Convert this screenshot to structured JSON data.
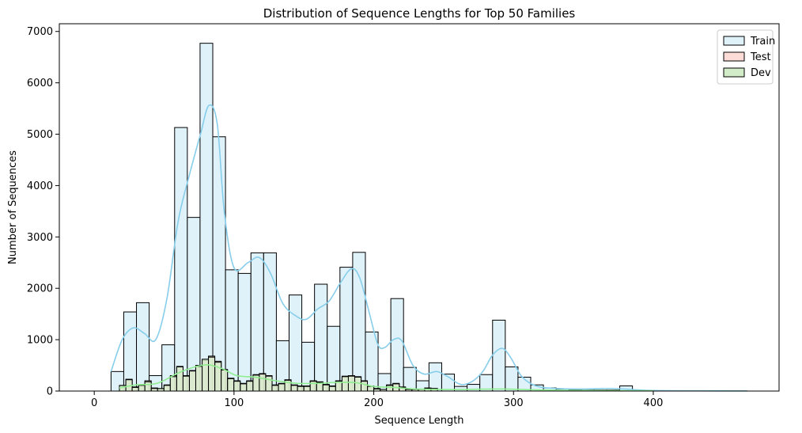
{
  "chart_data": {
    "type": "bar",
    "title": "Distribution of Sequence Lengths for Top 50 Families",
    "xlabel": "Sequence Length",
    "ylabel": "Number of Sequences",
    "xlim": [
      -25,
      490
    ],
    "ylim": [
      0,
      7150
    ],
    "xticks": [
      0,
      100,
      200,
      300,
      400
    ],
    "yticks": [
      0,
      1000,
      2000,
      3000,
      4000,
      5000,
      6000,
      7000
    ],
    "grid": false,
    "legend_position": "top-right",
    "series": [
      {
        "name": "Train",
        "fill": "#dff2fa",
        "kde_color": "#87ceeb",
        "bin_width": 9.1,
        "bins": [
          {
            "x": 12,
            "y": 380
          },
          {
            "x": 21.1,
            "y": 1540
          },
          {
            "x": 30.2,
            "y": 1720
          },
          {
            "x": 39.3,
            "y": 300
          },
          {
            "x": 48.4,
            "y": 900
          },
          {
            "x": 57.5,
            "y": 5130
          },
          {
            "x": 66.6,
            "y": 3380
          },
          {
            "x": 75.7,
            "y": 6770
          },
          {
            "x": 84.8,
            "y": 4950
          },
          {
            "x": 93.9,
            "y": 2360
          },
          {
            "x": 103,
            "y": 2290
          },
          {
            "x": 112.1,
            "y": 2690
          },
          {
            "x": 121.2,
            "y": 2690
          },
          {
            "x": 130.3,
            "y": 980
          },
          {
            "x": 139.4,
            "y": 1870
          },
          {
            "x": 148.5,
            "y": 950
          },
          {
            "x": 157.6,
            "y": 2080
          },
          {
            "x": 166.7,
            "y": 1260
          },
          {
            "x": 175.8,
            "y": 2410
          },
          {
            "x": 184.9,
            "y": 2700
          },
          {
            "x": 194,
            "y": 1150
          },
          {
            "x": 203.1,
            "y": 340
          },
          {
            "x": 212.2,
            "y": 1800
          },
          {
            "x": 221.3,
            "y": 460
          },
          {
            "x": 230.4,
            "y": 200
          },
          {
            "x": 239.5,
            "y": 550
          },
          {
            "x": 248.6,
            "y": 330
          },
          {
            "x": 257.7,
            "y": 90
          },
          {
            "x": 266.8,
            "y": 130
          },
          {
            "x": 275.9,
            "y": 320
          },
          {
            "x": 285,
            "y": 1380
          },
          {
            "x": 294.1,
            "y": 470
          },
          {
            "x": 303.2,
            "y": 270
          },
          {
            "x": 312.3,
            "y": 120
          },
          {
            "x": 321.4,
            "y": 60
          },
          {
            "x": 330.5,
            "y": 40
          },
          {
            "x": 339.6,
            "y": 30
          },
          {
            "x": 348.7,
            "y": 20
          },
          {
            "x": 357.8,
            "y": 20
          },
          {
            "x": 366.9,
            "y": 20
          },
          {
            "x": 376,
            "y": 100
          },
          {
            "x": 385.1,
            "y": 10
          },
          {
            "x": 394.2,
            "y": 5
          },
          {
            "x": 403.3,
            "y": 5
          },
          {
            "x": 412.4,
            "y": 5
          },
          {
            "x": 421.5,
            "y": 5
          },
          {
            "x": 430.6,
            "y": 5
          },
          {
            "x": 439.7,
            "y": 3
          },
          {
            "x": 448.8,
            "y": 3
          },
          {
            "x": 457.9,
            "y": 3
          }
        ],
        "kde": [
          {
            "x": 12,
            "y": 380
          },
          {
            "x": 20,
            "y": 1000
          },
          {
            "x": 28,
            "y": 1230
          },
          {
            "x": 36,
            "y": 1120
          },
          {
            "x": 44,
            "y": 1000
          },
          {
            "x": 52,
            "y": 1800
          },
          {
            "x": 60,
            "y": 3300
          },
          {
            "x": 68,
            "y": 4200
          },
          {
            "x": 76,
            "y": 5000
          },
          {
            "x": 82,
            "y": 5560
          },
          {
            "x": 88,
            "y": 5200
          },
          {
            "x": 93,
            "y": 3500
          },
          {
            "x": 100,
            "y": 2400
          },
          {
            "x": 110,
            "y": 2500
          },
          {
            "x": 118,
            "y": 2600
          },
          {
            "x": 126,
            "y": 2300
          },
          {
            "x": 135,
            "y": 1700
          },
          {
            "x": 145,
            "y": 1450
          },
          {
            "x": 152,
            "y": 1400
          },
          {
            "x": 160,
            "y": 1600
          },
          {
            "x": 168,
            "y": 1750
          },
          {
            "x": 176,
            "y": 2100
          },
          {
            "x": 184,
            "y": 2380
          },
          {
            "x": 190,
            "y": 2200
          },
          {
            "x": 197,
            "y": 1500
          },
          {
            "x": 203,
            "y": 900
          },
          {
            "x": 208,
            "y": 850
          },
          {
            "x": 214,
            "y": 1000
          },
          {
            "x": 220,
            "y": 980
          },
          {
            "x": 228,
            "y": 500
          },
          {
            "x": 236,
            "y": 330
          },
          {
            "x": 245,
            "y": 380
          },
          {
            "x": 253,
            "y": 280
          },
          {
            "x": 262,
            "y": 130
          },
          {
            "x": 270,
            "y": 180
          },
          {
            "x": 278,
            "y": 380
          },
          {
            "x": 285,
            "y": 700
          },
          {
            "x": 292,
            "y": 830
          },
          {
            "x": 298,
            "y": 650
          },
          {
            "x": 306,
            "y": 280
          },
          {
            "x": 316,
            "y": 100
          },
          {
            "x": 330,
            "y": 50
          },
          {
            "x": 350,
            "y": 40
          },
          {
            "x": 370,
            "y": 50
          },
          {
            "x": 385,
            "y": 30
          },
          {
            "x": 400,
            "y": 10
          },
          {
            "x": 430,
            "y": 5
          },
          {
            "x": 467,
            "y": 2
          }
        ]
      },
      {
        "name": "Test",
        "fill": "#fddcd7",
        "kde_color": "#f4a6a0",
        "bin_width": 4.55,
        "bins": [
          {
            "x": 18,
            "y": 100
          },
          {
            "x": 22.6,
            "y": 230
          },
          {
            "x": 27.1,
            "y": 80
          },
          {
            "x": 31.7,
            "y": 120
          },
          {
            "x": 36.2,
            "y": 200
          },
          {
            "x": 40.8,
            "y": 60
          },
          {
            "x": 45.3,
            "y": 40
          },
          {
            "x": 49.9,
            "y": 120
          },
          {
            "x": 54.4,
            "y": 300
          },
          {
            "x": 59,
            "y": 480
          },
          {
            "x": 63.5,
            "y": 300
          },
          {
            "x": 68.1,
            "y": 400
          },
          {
            "x": 72.6,
            "y": 500
          },
          {
            "x": 77.2,
            "y": 600
          },
          {
            "x": 81.7,
            "y": 680
          },
          {
            "x": 86.3,
            "y": 580
          },
          {
            "x": 90.8,
            "y": 420
          },
          {
            "x": 95.4,
            "y": 250
          },
          {
            "x": 99.9,
            "y": 200
          },
          {
            "x": 104.5,
            "y": 150
          },
          {
            "x": 109,
            "y": 200
          },
          {
            "x": 113.6,
            "y": 320
          },
          {
            "x": 118.1,
            "y": 340
          },
          {
            "x": 122.7,
            "y": 300
          },
          {
            "x": 127.2,
            "y": 120
          },
          {
            "x": 131.8,
            "y": 150
          },
          {
            "x": 136.3,
            "y": 220
          },
          {
            "x": 140.9,
            "y": 120
          },
          {
            "x": 145.4,
            "y": 100
          },
          {
            "x": 150,
            "y": 100
          },
          {
            "x": 154.5,
            "y": 200
          },
          {
            "x": 159.1,
            "y": 180
          },
          {
            "x": 163.6,
            "y": 130
          },
          {
            "x": 168.2,
            "y": 100
          },
          {
            "x": 172.7,
            "y": 200
          },
          {
            "x": 177.3,
            "y": 290
          },
          {
            "x": 181.8,
            "y": 300
          },
          {
            "x": 186.4,
            "y": 280
          },
          {
            "x": 190.9,
            "y": 200
          },
          {
            "x": 195.5,
            "y": 100
          },
          {
            "x": 200,
            "y": 50
          },
          {
            "x": 204.6,
            "y": 30
          },
          {
            "x": 209.1,
            "y": 120
          },
          {
            "x": 213.7,
            "y": 150
          },
          {
            "x": 218.2,
            "y": 80
          },
          {
            "x": 222.8,
            "y": 30
          },
          {
            "x": 227.3,
            "y": 30
          },
          {
            "x": 231.9,
            "y": 30
          },
          {
            "x": 236.4,
            "y": 60
          },
          {
            "x": 241,
            "y": 50
          }
        ]
      },
      {
        "name": "Dev",
        "fill": "#d2ecc9",
        "kde_color": "#90ee90",
        "bin_width": 4.55,
        "bins": [
          {
            "x": 18,
            "y": 110
          },
          {
            "x": 22.6,
            "y": 220
          },
          {
            "x": 27.1,
            "y": 70
          },
          {
            "x": 31.7,
            "y": 110
          },
          {
            "x": 36.2,
            "y": 180
          },
          {
            "x": 40.8,
            "y": 50
          },
          {
            "x": 45.3,
            "y": 50
          },
          {
            "x": 49.9,
            "y": 110
          },
          {
            "x": 54.4,
            "y": 280
          },
          {
            "x": 59,
            "y": 470
          },
          {
            "x": 63.5,
            "y": 290
          },
          {
            "x": 68.1,
            "y": 390
          },
          {
            "x": 72.6,
            "y": 480
          },
          {
            "x": 77.2,
            "y": 620
          },
          {
            "x": 81.7,
            "y": 660
          },
          {
            "x": 86.3,
            "y": 560
          },
          {
            "x": 90.8,
            "y": 410
          },
          {
            "x": 95.4,
            "y": 240
          },
          {
            "x": 99.9,
            "y": 190
          },
          {
            "x": 104.5,
            "y": 140
          },
          {
            "x": 109,
            "y": 190
          },
          {
            "x": 113.6,
            "y": 310
          },
          {
            "x": 118.1,
            "y": 330
          },
          {
            "x": 122.7,
            "y": 290
          },
          {
            "x": 127.2,
            "y": 110
          },
          {
            "x": 131.8,
            "y": 140
          },
          {
            "x": 136.3,
            "y": 210
          },
          {
            "x": 140.9,
            "y": 110
          },
          {
            "x": 145.4,
            "y": 90
          },
          {
            "x": 150,
            "y": 90
          },
          {
            "x": 154.5,
            "y": 190
          },
          {
            "x": 159.1,
            "y": 170
          },
          {
            "x": 163.6,
            "y": 120
          },
          {
            "x": 168.2,
            "y": 90
          },
          {
            "x": 172.7,
            "y": 190
          },
          {
            "x": 177.3,
            "y": 280
          },
          {
            "x": 181.8,
            "y": 290
          },
          {
            "x": 186.4,
            "y": 270
          },
          {
            "x": 190.9,
            "y": 190
          },
          {
            "x": 195.5,
            "y": 90
          },
          {
            "x": 200,
            "y": 40
          },
          {
            "x": 204.6,
            "y": 30
          },
          {
            "x": 209.1,
            "y": 110
          },
          {
            "x": 213.7,
            "y": 140
          },
          {
            "x": 218.2,
            "y": 70
          },
          {
            "x": 222.8,
            "y": 30
          },
          {
            "x": 227.3,
            "y": 30
          },
          {
            "x": 231.9,
            "y": 30
          },
          {
            "x": 236.4,
            "y": 50
          },
          {
            "x": 241,
            "y": 50
          }
        ],
        "kde": [
          {
            "x": 18,
            "y": 60
          },
          {
            "x": 30,
            "y": 120
          },
          {
            "x": 45,
            "y": 150
          },
          {
            "x": 60,
            "y": 350
          },
          {
            "x": 72,
            "y": 470
          },
          {
            "x": 82,
            "y": 510
          },
          {
            "x": 92,
            "y": 430
          },
          {
            "x": 102,
            "y": 300
          },
          {
            "x": 115,
            "y": 270
          },
          {
            "x": 130,
            "y": 200
          },
          {
            "x": 145,
            "y": 150
          },
          {
            "x": 160,
            "y": 150
          },
          {
            "x": 175,
            "y": 170
          },
          {
            "x": 188,
            "y": 160
          },
          {
            "x": 200,
            "y": 90
          },
          {
            "x": 215,
            "y": 70
          },
          {
            "x": 230,
            "y": 40
          },
          {
            "x": 260,
            "y": 30
          },
          {
            "x": 290,
            "y": 40
          },
          {
            "x": 320,
            "y": 20
          },
          {
            "x": 350,
            "y": 10
          },
          {
            "x": 400,
            "y": 5
          }
        ]
      }
    ]
  }
}
